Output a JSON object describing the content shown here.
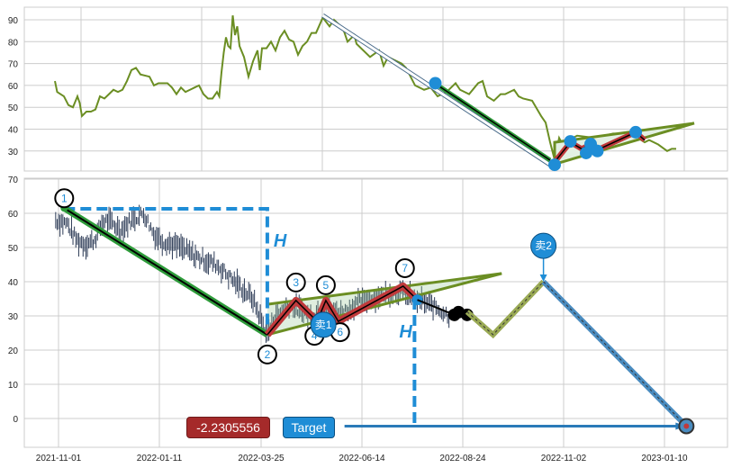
{
  "chart_data": [
    {
      "type": "line",
      "panel": "top",
      "ylim": [
        22,
        95
      ],
      "y_ticks": [
        30,
        40,
        50,
        60,
        70,
        80,
        90
      ],
      "grid": true,
      "line_color": "#6b8e23",
      "series": [
        [
          0,
          62
        ],
        [
          1,
          57
        ],
        [
          4,
          55
        ],
        [
          6,
          51
        ],
        [
          8,
          50
        ],
        [
          10,
          55
        ],
        [
          11,
          52
        ],
        [
          12,
          46
        ],
        [
          14,
          48
        ],
        [
          16,
          48
        ],
        [
          18,
          49
        ],
        [
          20,
          55
        ],
        [
          22,
          54
        ],
        [
          24,
          56
        ],
        [
          26,
          58
        ],
        [
          28,
          57
        ],
        [
          30,
          58
        ],
        [
          32,
          62
        ],
        [
          34,
          67
        ],
        [
          36,
          68
        ],
        [
          38,
          65
        ],
        [
          42,
          64
        ],
        [
          44,
          60
        ],
        [
          46,
          61
        ],
        [
          50,
          61
        ],
        [
          52,
          59
        ],
        [
          54,
          56
        ],
        [
          56,
          59
        ],
        [
          58,
          57
        ],
        [
          60,
          58
        ],
        [
          62,
          59
        ],
        [
          64,
          60
        ],
        [
          66,
          56
        ],
        [
          68,
          54
        ],
        [
          70,
          54
        ],
        [
          72,
          57
        ],
        [
          73,
          55
        ],
        [
          74,
          66
        ],
        [
          75,
          75
        ],
        [
          76,
          82
        ],
        [
          77,
          78
        ],
        [
          78,
          77
        ],
        [
          79,
          92
        ],
        [
          80,
          83
        ],
        [
          81,
          87
        ],
        [
          82,
          78
        ],
        [
          84,
          73
        ],
        [
          86,
          64
        ],
        [
          88,
          71
        ],
        [
          90,
          76
        ],
        [
          91,
          67
        ],
        [
          92,
          77
        ],
        [
          94,
          77
        ],
        [
          96,
          80
        ],
        [
          98,
          76
        ],
        [
          100,
          82
        ],
        [
          102,
          85
        ],
        [
          104,
          81
        ],
        [
          106,
          80
        ],
        [
          108,
          74
        ],
        [
          110,
          78
        ],
        [
          112,
          80
        ],
        [
          114,
          84
        ],
        [
          116,
          84
        ],
        [
          119,
          91
        ],
        [
          122,
          87
        ],
        [
          124,
          90
        ],
        [
          126,
          88
        ],
        [
          128,
          86
        ],
        [
          130,
          80
        ],
        [
          133,
          83
        ],
        [
          134,
          79
        ],
        [
          140,
          73
        ],
        [
          144,
          76
        ],
        [
          146,
          69
        ],
        [
          148,
          73
        ],
        [
          150,
          72
        ],
        [
          154,
          70
        ],
        [
          156,
          68
        ],
        [
          160,
          60
        ],
        [
          164,
          58
        ],
        [
          167,
          59
        ],
        [
          170,
          55
        ],
        [
          174,
          57
        ],
        [
          178,
          61
        ],
        [
          180,
          58
        ],
        [
          184,
          56
        ],
        [
          188,
          61
        ],
        [
          190,
          62
        ],
        [
          192,
          55
        ],
        [
          195,
          53
        ],
        [
          198,
          56
        ],
        [
          200,
          56
        ],
        [
          204,
          58
        ],
        [
          206,
          55
        ],
        [
          208,
          54
        ],
        [
          212,
          53
        ],
        [
          216,
          46
        ],
        [
          218,
          43
        ],
        [
          220,
          34
        ],
        [
          222,
          26
        ],
        [
          224,
          36
        ],
        [
          226,
          32
        ],
        [
          228,
          35
        ],
        [
          232,
          37
        ],
        [
          240,
          36
        ],
        [
          248,
          38
        ],
        [
          256,
          38
        ],
        [
          262,
          34
        ],
        [
          264,
          35
        ],
        [
          268,
          33
        ],
        [
          272,
          30
        ],
        [
          274,
          31
        ],
        [
          276,
          31
        ]
      ],
      "arrow": [
        [
          119,
          92
        ],
        [
          220,
          23.7
        ]
      ],
      "trend_line": [
        [
          169,
          60.8
        ],
        [
          220,
          25.8
        ]
      ],
      "dots": [
        [
          169,
          61
        ],
        [
          222,
          23.7
        ],
        [
          229,
          34.4
        ],
        [
          236,
          29.1
        ],
        [
          238,
          33.2
        ],
        [
          241,
          30
        ],
        [
          258,
          38.6
        ]
      ],
      "triangle": [
        [
          222,
          34
        ],
        [
          284,
          42.7
        ],
        [
          222,
          24
        ]
      ],
      "zigzag": [
        [
          222,
          25
        ],
        [
          229,
          34
        ],
        [
          234,
          31
        ],
        [
          238,
          33
        ],
        [
          242,
          31
        ],
        [
          258,
          38.6
        ],
        [
          262,
          35
        ]
      ]
    },
    {
      "type": "candlestick",
      "panel": "bottom",
      "ylim": [
        -8.4,
        70
      ],
      "y_ticks": [
        0,
        10,
        20,
        30,
        40,
        50,
        60,
        70
      ],
      "x_ticks": [
        "2021-11-01",
        "2022-01-11",
        "2022-03-25",
        "2022-06-14",
        "2022-08-24",
        "2022-11-02",
        "2023-01-10"
      ],
      "grid": true,
      "price_path": [
        [
          "2021-10-30",
          58
        ],
        [
          "2021-11-07",
          57
        ],
        [
          "2021-11-14",
          52
        ],
        [
          "2021-11-20",
          51
        ],
        [
          "2021-11-26",
          52
        ],
        [
          "2021-12-03",
          58
        ],
        [
          "2021-12-09",
          57
        ],
        [
          "2021-12-15",
          55
        ],
        [
          "2021-12-22",
          58
        ],
        [
          "2021-12-31",
          60
        ],
        [
          "2022-01-07",
          54
        ],
        [
          "2022-01-13",
          52
        ],
        [
          "2022-01-26",
          50
        ],
        [
          "2022-02-08",
          47
        ],
        [
          "2022-02-21",
          45
        ],
        [
          "2022-03-06",
          40
        ],
        [
          "2022-03-19",
          35
        ],
        [
          "2022-03-26",
          28
        ],
        [
          "2022-03-30",
          25
        ],
        [
          "2022-04-05",
          30
        ],
        [
          "2022-04-16",
          33
        ],
        [
          "2022-04-23",
          32
        ],
        [
          "2022-05-04",
          30
        ],
        [
          "2022-05-15",
          32
        ],
        [
          "2022-05-29",
          31
        ],
        [
          "2022-06-12",
          34
        ],
        [
          "2022-06-25",
          36
        ],
        [
          "2022-07-11",
          37
        ],
        [
          "2022-07-21",
          35
        ],
        [
          "2022-08-03",
          33
        ],
        [
          "2022-08-15",
          30
        ]
      ],
      "pattern_points": [
        {
          "label": "1",
          "date": "2021-11-05",
          "value": 61.5
        },
        {
          "label": "2",
          "date": "2022-03-30",
          "value": 24.5
        },
        {
          "label": "3",
          "date": "2022-04-22",
          "value": 34.5
        },
        {
          "label": "4",
          "date": "2022-05-09",
          "value": 28.4
        },
        {
          "label": "5",
          "date": "2022-05-16",
          "value": 34.5
        },
        {
          "label": "6",
          "date": "2022-05-26",
          "value": 28.4
        },
        {
          "label": "7",
          "date": "2022-07-13",
          "value": 38.7
        }
      ],
      "zigzag_end": {
        "date": "2022-07-23",
        "value": 34.7
      },
      "black_tail": [
        [
          "2022-07-23",
          34.7
        ],
        [
          "2022-08-18",
          30.3
        ]
      ],
      "black_dots": [
        [
          "2022-08-18",
          30.3
        ],
        [
          "2022-08-21",
          31.1
        ],
        [
          "2022-08-27",
          30.3
        ]
      ],
      "projection_olive": [
        [
          "2022-08-27",
          31.2
        ],
        [
          "2022-09-14",
          24.5
        ],
        [
          "2022-10-19",
          40
        ]
      ],
      "projection_blue": [
        [
          "2022-10-19",
          40
        ],
        [
          "2023-01-25",
          -2.2305556
        ]
      ],
      "triangle": {
        "upper": [
          [
            "2022-03-30",
            33.4
          ],
          [
            "2022-09-20",
            42.4
          ]
        ],
        "lower": [
          [
            "2022-03-30",
            24.5
          ],
          [
            "2022-09-20",
            42.4
          ]
        ]
      },
      "sell_markers": [
        {
          "label": "卖1",
          "date": "2022-05-14",
          "value": 27.4
        },
        {
          "label": "卖2",
          "date": "2022-10-19",
          "value": 50.5,
          "arrow_to": 40
        }
      ],
      "measure_box": {
        "top": 61.3,
        "from": "2021-11-05",
        "to": "2022-03-30",
        "bottom": 24.5,
        "label": "H"
      },
      "measure_drop": {
        "date": "2022-07-21",
        "from": 35,
        "to": -2.2305556,
        "label": "H"
      },
      "target_line": {
        "from": "2022-05-31",
        "to": "2023-01-25",
        "value": -2.2305556
      },
      "target_value_label": "-2.2305556",
      "target_label": "Target",
      "colors": {
        "candle": "#2b3a55",
        "green": "#2e9b3a",
        "red": "#c0393b",
        "olive": "#6b8e23",
        "blue": "#1f8dd6",
        "target_red": "#a52a2a"
      }
    }
  ]
}
